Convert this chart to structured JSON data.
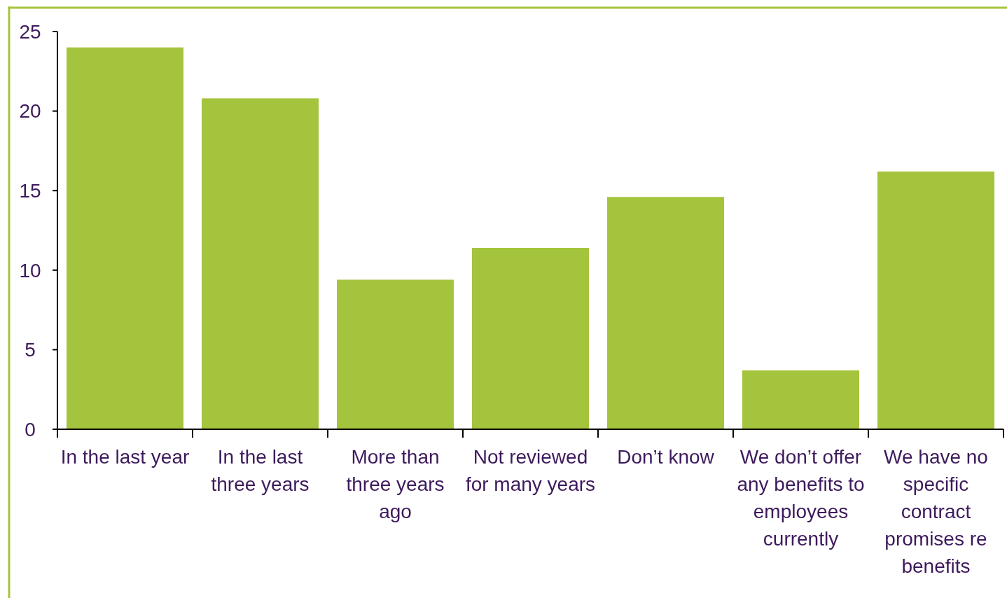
{
  "chart_data": {
    "type": "bar",
    "categories": [
      "In the last year",
      "In the last three years",
      "More than three years ago",
      "Not reviewed for many years",
      "Don’t know",
      "We don’t offer any benefits to employees currently",
      "We have no specific contract promises re benefits"
    ],
    "values": [
      24,
      20.8,
      9.4,
      11.4,
      14.6,
      3.7,
      16.2
    ],
    "color": "#a4c43d",
    "ylim": [
      0,
      25
    ],
    "yticks": [
      0,
      5,
      10,
      15,
      20,
      25
    ],
    "grid": false
  }
}
